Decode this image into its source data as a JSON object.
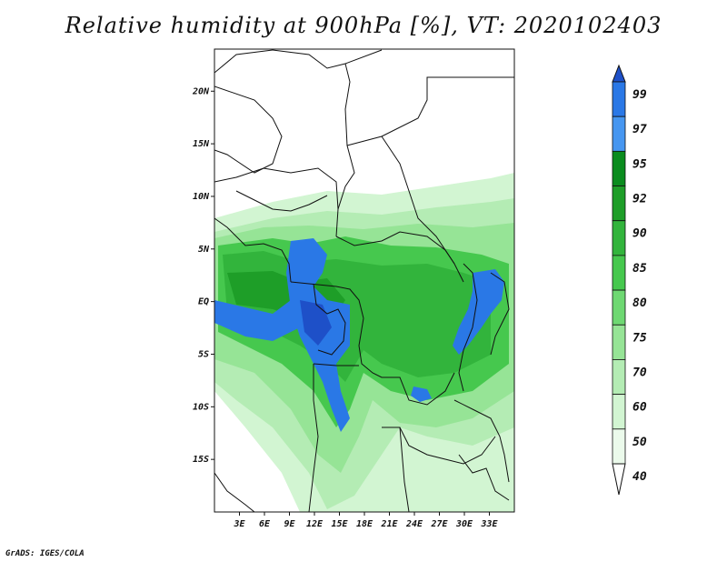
{
  "title": "Relative humidity at 900hPa [%], VT: 2020102403",
  "credit": "GrADS: IGES/COLA",
  "map": {
    "lon_range": [
      0,
      36
    ],
    "lat_range": [
      -20,
      24
    ],
    "lat_ticks": [
      "20N",
      "15N",
      "10N",
      "5N",
      "EQ",
      "5S",
      "10S",
      "15S"
    ],
    "lat_values": [
      20,
      15,
      10,
      5,
      0,
      -5,
      -10,
      -15
    ],
    "lon_ticks": [
      "3E",
      "6E",
      "9E",
      "12E",
      "15E",
      "18E",
      "21E",
      "24E",
      "27E",
      "30E",
      "33E"
    ],
    "lon_values": [
      3,
      6,
      9,
      12,
      15,
      18,
      21,
      24,
      27,
      30,
      33
    ]
  },
  "colorbar": {
    "levels": [
      "99",
      "97",
      "95",
      "92",
      "90",
      "85",
      "80",
      "75",
      "70",
      "60",
      "50",
      "40"
    ],
    "colors": [
      "#1e50c8",
      "#2a78e6",
      "#4696f0",
      "#0a8c1e",
      "#1e9e28",
      "#32b43c",
      "#46c84e",
      "#6ed872",
      "#96e496",
      "#b4ecb4",
      "#d2f5d2",
      "#ebfaeb"
    ],
    "top_color": "#1e50c8",
    "bottom_color": "#ffffff"
  }
}
